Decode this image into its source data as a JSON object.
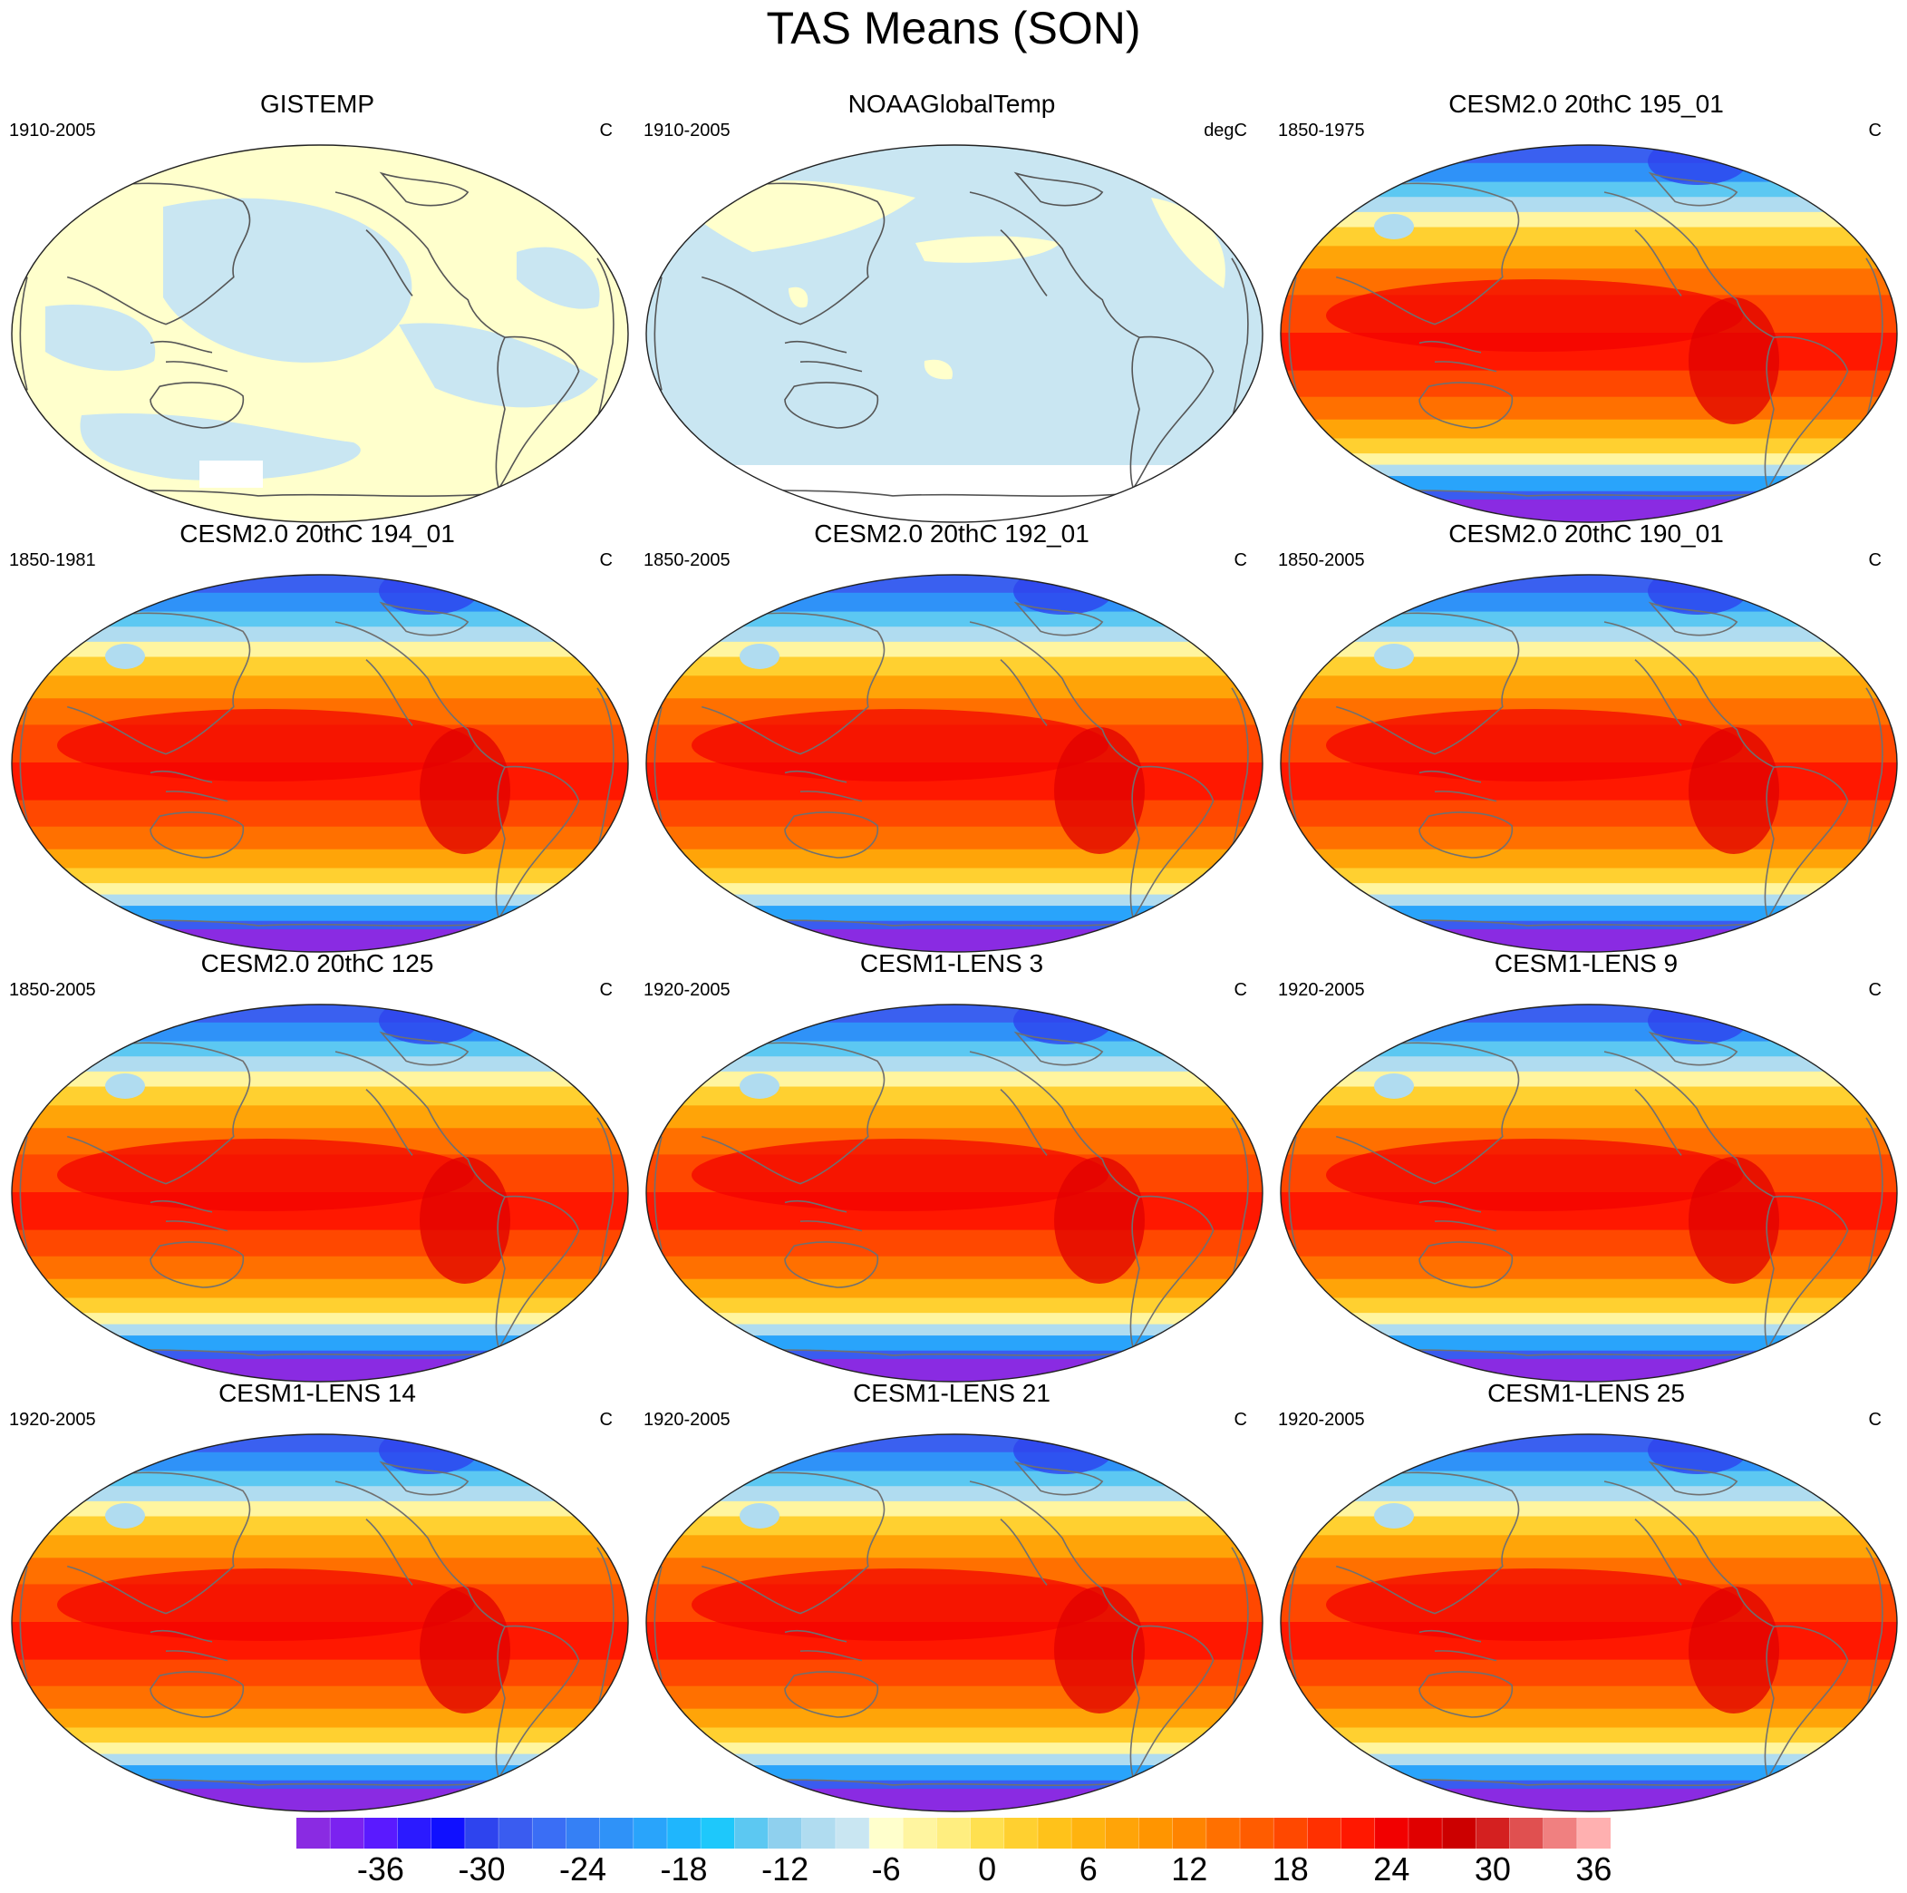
{
  "figure": {
    "title": "TAS Means (SON)"
  },
  "panels": [
    {
      "title": "GISTEMP",
      "period": "1910-2005",
      "units": "C",
      "kind": "obs_gis"
    },
    {
      "title": "NOAAGlobalTemp",
      "period": "1910-2005",
      "units": "degC",
      "kind": "obs_noaa"
    },
    {
      "title": "CESM2.0 20thC 195_01",
      "period": "1850-1975",
      "units": "C",
      "kind": "model"
    },
    {
      "title": "CESM2.0 20thC 194_01",
      "period": "1850-1981",
      "units": "C",
      "kind": "model"
    },
    {
      "title": "CESM2.0 20thC 192_01",
      "period": "1850-2005",
      "units": "C",
      "kind": "model"
    },
    {
      "title": "CESM2.0 20thC 190_01",
      "period": "1850-2005",
      "units": "C",
      "kind": "model"
    },
    {
      "title": "CESM2.0 20thC 125",
      "period": "1850-2005",
      "units": "C",
      "kind": "model"
    },
    {
      "title": "CESM1-LENS 3",
      "period": "1920-2005",
      "units": "C",
      "kind": "model"
    },
    {
      "title": "CESM1-LENS 9",
      "period": "1920-2005",
      "units": "C",
      "kind": "model"
    },
    {
      "title": "CESM1-LENS 14",
      "period": "1920-2005",
      "units": "C",
      "kind": "model"
    },
    {
      "title": "CESM1-LENS 21",
      "period": "1920-2005",
      "units": "C",
      "kind": "model"
    },
    {
      "title": "CESM1-LENS 25",
      "period": "1920-2005",
      "units": "C",
      "kind": "model"
    }
  ],
  "colorbar": {
    "labels": [
      "-36",
      "-30",
      "-24",
      "-18",
      "-12",
      "-6",
      "0",
      "6",
      "12",
      "18",
      "24",
      "30",
      "36"
    ],
    "colors": [
      "#8a2be2",
      "#7b22f0",
      "#5a1aff",
      "#2b1aff",
      "#1010ff",
      "#2e44ee",
      "#3a5cf0",
      "#3a6ef5",
      "#3580f5",
      "#2f92f8",
      "#29a4fb",
      "#1fb6fd",
      "#1ec8fb",
      "#5cc8f2",
      "#8fd0ee",
      "#b0dcf0",
      "#c9e6f2",
      "#ffffcc",
      "#fff5a0",
      "#ffee80",
      "#ffe050",
      "#ffd030",
      "#ffc21a",
      "#ffb30f",
      "#ffa408",
      "#ff9500",
      "#ff8400",
      "#ff7000",
      "#ff5c00",
      "#ff4800",
      "#ff3000",
      "#ff1800",
      "#f20000",
      "#e00000",
      "#cc0000",
      "#d42020",
      "#e05050",
      "#f08080",
      "#ffb0b0"
    ]
  }
}
